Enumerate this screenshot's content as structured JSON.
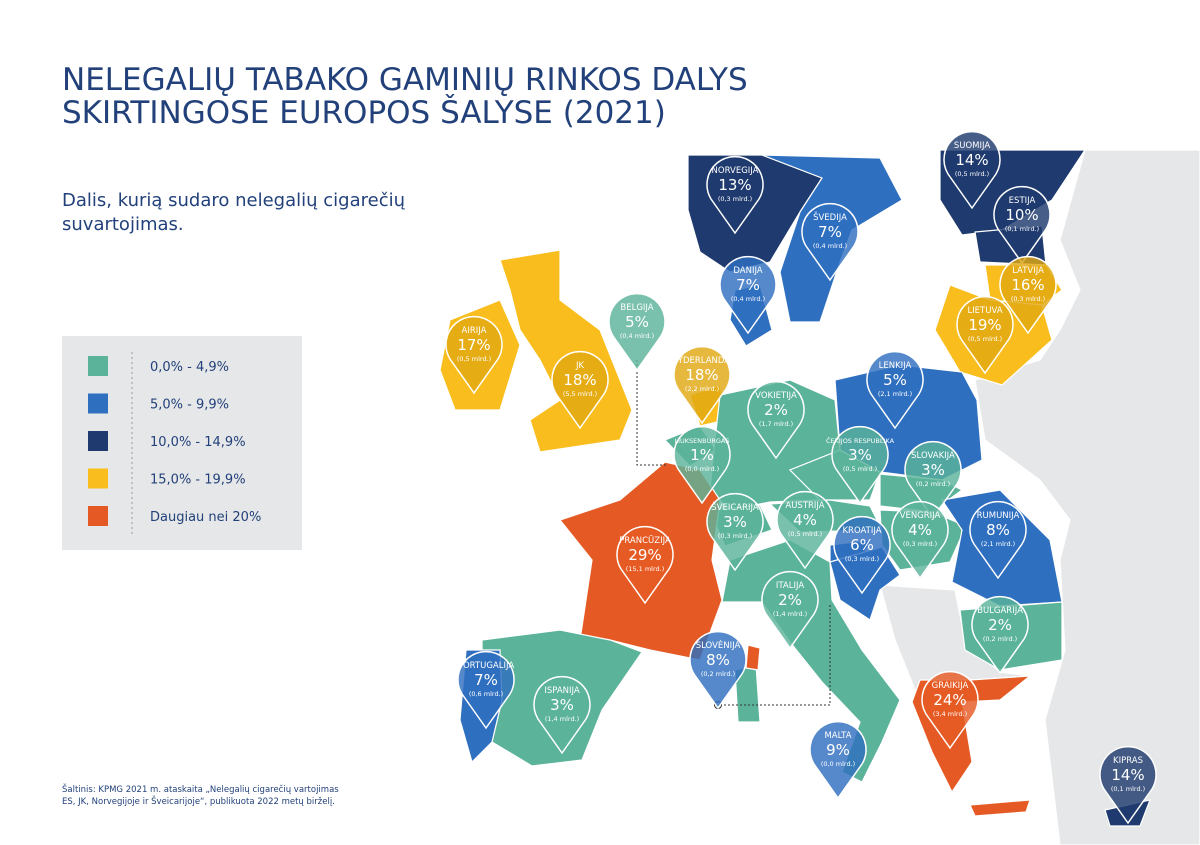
{
  "header": {
    "title": [
      "NELEGALIŲ TABAKO GAMINIŲ RINKOS DALYS",
      "SKIRTINGOSE EUROPOS ŠALYSE (2021)"
    ],
    "subtitle": [
      "Dalis, kurią sudaro nelegalių cigarečių",
      "suvartojimas."
    ]
  },
  "legend": [
    {
      "label": "0,0% - 4,9%",
      "color": "#5bb39a"
    },
    {
      "label": "5,0% - 9,9%",
      "color": "#2f6fbf"
    },
    {
      "label": "10,0% - 14,9%",
      "color": "#1f3a6e"
    },
    {
      "label": "15,0% - 19,9%",
      "color": "#f9be1e"
    },
    {
      "label": "Daugiau nei 20%",
      "color": "#e55a24"
    }
  ],
  "pins": [
    {
      "country": "NORVEGIJA",
      "share": "13%",
      "volume": "(0,3 mlrd.)",
      "color": "#1f3a6e"
    },
    {
      "country": "SUOMIJA",
      "share": "14%",
      "volume": "(0,5 mlrd.)",
      "color": "#1f3a6e"
    },
    {
      "country": "ESTIJA",
      "share": "10%",
      "volume": "(0,1 mlrd.)",
      "color": "#1f3a6e"
    },
    {
      "country": "ŠVEDIJA",
      "share": "7%",
      "volume": "(0,4 mlrd.)",
      "color": "#2f6fbf"
    },
    {
      "country": "DANIJA",
      "share": "7%",
      "volume": "(0,4 mlrd.)",
      "color": "#2f6fbf"
    },
    {
      "country": "LATVIJA",
      "share": "16%",
      "volume": "(0,3 mlrd.)",
      "color": "#e0a812"
    },
    {
      "country": "LIETUVA",
      "share": "19%",
      "volume": "(0,5 mlrd.)",
      "color": "#e0a812"
    },
    {
      "country": "BELGIJA",
      "share": "5%",
      "volume": "(0,4 mlrd.)",
      "color": "#5bb39a"
    },
    {
      "country": "AIRIJA",
      "share": "17%",
      "volume": "(0,5 mlrd.)",
      "color": "#e0a812"
    },
    {
      "country": "JK",
      "share": "18%",
      "volume": "(5,5 mlrd.)",
      "color": "#e0a812"
    },
    {
      "country": "NYDERLANDAI",
      "share": "18%",
      "volume": "(2,2 mlrd.)",
      "color": "#e0a812"
    },
    {
      "country": "LENKIJA",
      "share": "5%",
      "volume": "(2,1 mlrd.)",
      "color": "#2f6fbf"
    },
    {
      "country": "VOKIETIJA",
      "share": "2%",
      "volume": "(1,7 mlrd.)",
      "color": "#5bb39a"
    },
    {
      "country": "ČEKIJOS RESPUBLIKA",
      "share": "3%",
      "volume": "(0,5 mlrd.)",
      "color": "#5bb39a"
    },
    {
      "country": "LIUKSENBURGAS",
      "share": "1%",
      "volume": "(0,0 mlrd.)",
      "color": "#5bb39a"
    },
    {
      "country": "SLOVAKIJA",
      "share": "3%",
      "volume": "(0,2 mlrd.)",
      "color": "#5bb39a"
    },
    {
      "country": "AUSTRIJA",
      "share": "4%",
      "volume": "(0,5 mlrd.)",
      "color": "#5bb39a"
    },
    {
      "country": "ŠVEICARIJA",
      "share": "3%",
      "volume": "(0,3 mlrd.)",
      "color": "#5bb39a"
    },
    {
      "country": "VENGRIJA",
      "share": "4%",
      "volume": "(0,3 mlrd.)",
      "color": "#5bb39a"
    },
    {
      "country": "RUMUNIJA",
      "share": "8%",
      "volume": "(2,1 mlrd.)",
      "color": "#2f6fbf"
    },
    {
      "country": "KROATIJA",
      "share": "6%",
      "volume": "(0,3 mlrd.)",
      "color": "#2f6fbf"
    },
    {
      "country": "PRANCŪZIJA",
      "share": "29%",
      "volume": "(15,1 mlrd.)",
      "color": "#e55a24"
    },
    {
      "country": "ITALIJA",
      "share": "2%",
      "volume": "(1,4 mlrd.)",
      "color": "#5bb39a"
    },
    {
      "country": "BULGARIJA",
      "share": "2%",
      "volume": "(0,2 mlrd.)",
      "color": "#5bb39a"
    },
    {
      "country": "SLOVĖNIJA",
      "share": "8%",
      "volume": "(0,2 mlrd.)",
      "color": "#2f6fbf"
    },
    {
      "country": "PORTUGALIJA",
      "share": "7%",
      "volume": "(0,6 mlrd.)",
      "color": "#2f6fbf"
    },
    {
      "country": "ISPANIJA",
      "share": "3%",
      "volume": "(1,4 mlrd.)",
      "color": "#5bb39a"
    },
    {
      "country": "GRAIKIJA",
      "share": "24%",
      "volume": "(3,4 mlrd.)",
      "color": "#e55a24"
    },
    {
      "country": "MALTA",
      "share": "9%",
      "volume": "(0,0 mlrd.)",
      "color": "#2f6fbf"
    },
    {
      "country": "KIPRAS",
      "share": "14%",
      "volume": "(0,1 mlrd.)",
      "color": "#1f3a6e"
    }
  ],
  "source": [
    "Šaltinis: KPMG 2021 m. ataskaita „Nelegalių cigarečių vartojimas",
    "ES, JK, Norvegijoje ir Šveicarijoje“, publikuota 2022 metų birželį."
  ]
}
